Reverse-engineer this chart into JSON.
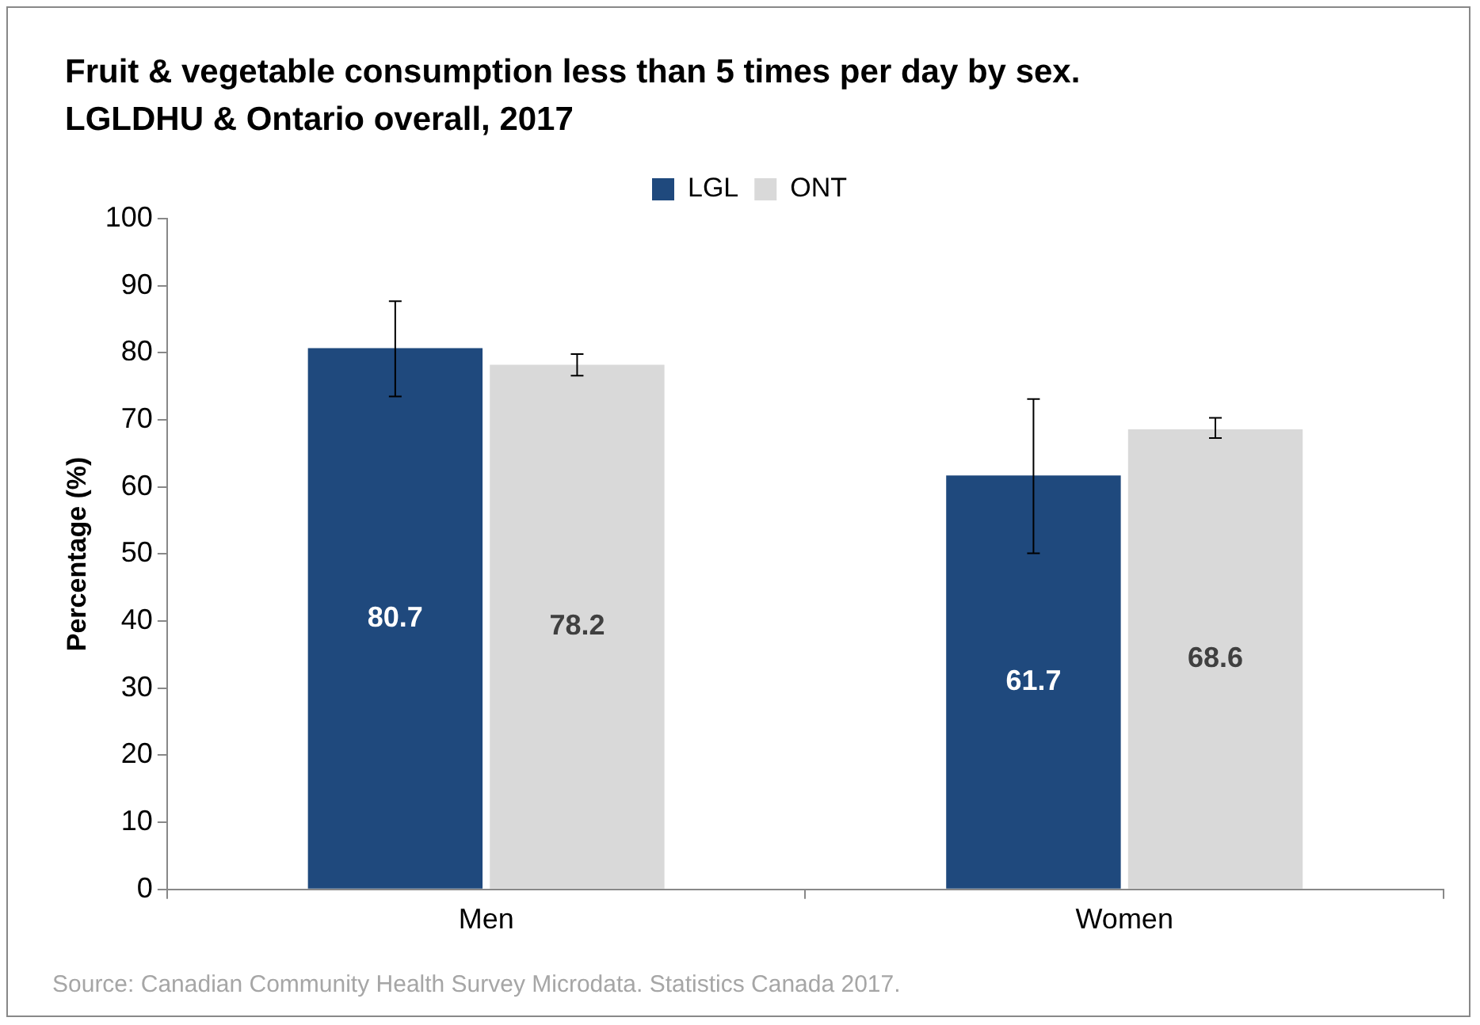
{
  "chart_data": {
    "type": "bar",
    "title": "Fruit & vegetable consumption less than 5 times per day by sex.\nLGLDHU & Ontario overall, 2017",
    "ylabel": "Percentage (%)",
    "categories": [
      "Men",
      "Women"
    ],
    "series": [
      {
        "name": "LGL",
        "color": "#1f497d",
        "values": [
          80.7,
          61.7
        ],
        "errors": [
          [
            73.5,
            87.7
          ],
          [
            50.1,
            73.1
          ]
        ]
      },
      {
        "name": "ONT",
        "color": "#d9d9d9",
        "values": [
          78.2,
          68.6
        ],
        "errors": [
          [
            76.6,
            79.8
          ],
          [
            67.3,
            70.3
          ]
        ]
      }
    ],
    "ylim": [
      0,
      100
    ],
    "yticks": [
      0,
      10,
      20,
      30,
      40,
      50,
      60,
      70,
      80,
      90,
      100
    ],
    "grid": false,
    "legend": "top",
    "data_labels": true,
    "annotations": [
      "Source: Canadian Community Health Survey Microdata.  Statistics Canada 2017."
    ]
  }
}
